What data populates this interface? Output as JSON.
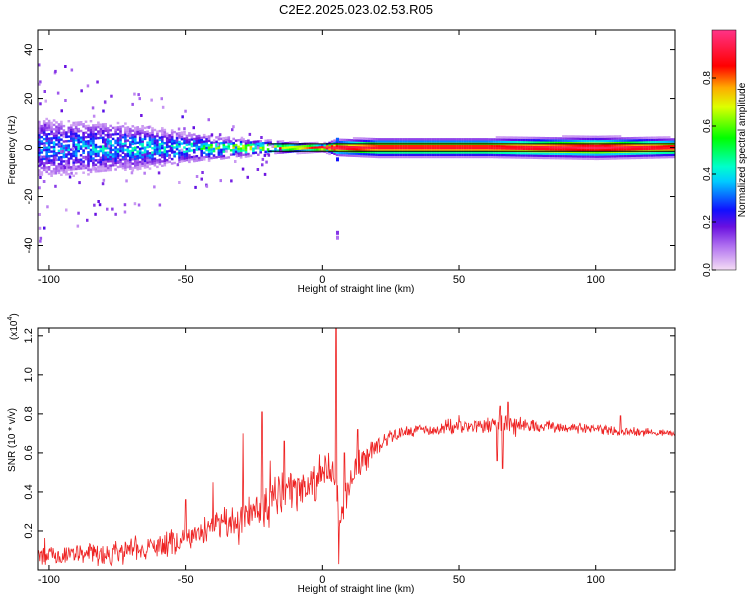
{
  "title": "C2E2.2025.023.02.53.R05",
  "colors": {
    "snr_line": "#ee2222",
    "frame": "#000000",
    "background": "#ffffff"
  },
  "chart_data": [
    {
      "type": "heatmap",
      "name": "spectrogram",
      "xlabel": "Height of straight line (km)",
      "ylabel": "Frequency (Hz)",
      "xlim": [
        -104,
        129
      ],
      "ylim": [
        -50,
        48
      ],
      "xticks": [
        -100,
        -50,
        0,
        50,
        100
      ],
      "yticks": [
        -40,
        -20,
        0,
        20,
        40
      ],
      "grid": false,
      "colorbar": {
        "label": "Normalized spectral amplitude",
        "range": [
          0,
          1
        ],
        "ticks": [
          "0.0",
          "0.2",
          "0.4",
          "0.6",
          "0.8"
        ],
        "colormap": [
          "#f5ddf5",
          "#8a2be2",
          "#0000ff",
          "#00ffff",
          "#00ff00",
          "#ffff00",
          "#ff8800",
          "#ff0000",
          "#ff33aa"
        ]
      },
      "horizontal_lines": [
        1.5,
        -1.5
      ],
      "band": [
        {
          "x": -104,
          "half_width": 12,
          "peak": 0.3
        },
        {
          "x": -75,
          "half_width": 10,
          "peak": 0.35
        },
        {
          "x": -50,
          "half_width": 6,
          "peak": 0.4
        },
        {
          "x": -25,
          "half_width": 3,
          "peak": 0.6
        },
        {
          "x": -10,
          "half_width": 2,
          "peak": 0.7
        },
        {
          "x": 0,
          "half_width": 1.5,
          "peak": 0.95
        },
        {
          "x": 5,
          "half_width": 3,
          "peak": 0.95
        },
        {
          "x": 20,
          "half_width": 3.5,
          "peak": 0.9
        },
        {
          "x": 60,
          "half_width": 3.5,
          "peak": 0.9
        },
        {
          "x": 100,
          "half_width": 4,
          "peak": 0.95
        },
        {
          "x": 129,
          "half_width": 3.5,
          "peak": 0.9
        }
      ]
    },
    {
      "type": "line",
      "name": "snr",
      "xlabel": "Height of straight line (km)",
      "ylabel": "SNR (10 * v/v)",
      "scale_label": "(x10",
      "scale_exponent": "4",
      "scale_close": ")",
      "xlim": [
        -104,
        129
      ],
      "ylim": [
        0,
        1.24
      ],
      "xticks": [
        -100,
        -50,
        0,
        50,
        100
      ],
      "yticks": [
        "0.2",
        "0.4",
        "0.6",
        "0.8",
        "1.0",
        "1.2"
      ],
      "grid": false,
      "series": [
        {
          "baseline": [
            [
              -104,
              0.07
            ],
            [
              -80,
              0.08
            ],
            [
              -60,
              0.12
            ],
            [
              -50,
              0.17
            ],
            [
              -40,
              0.21
            ],
            [
              -30,
              0.26
            ],
            [
              -20,
              0.33
            ],
            [
              -10,
              0.4
            ],
            [
              0,
              0.48
            ],
            [
              4,
              0.55
            ],
            [
              6,
              0.3
            ],
            [
              8,
              0.3
            ],
            [
              10,
              0.45
            ],
            [
              15,
              0.57
            ],
            [
              20,
              0.64
            ],
            [
              25,
              0.69
            ],
            [
              30,
              0.71
            ],
            [
              40,
              0.72
            ],
            [
              50,
              0.73
            ],
            [
              60,
              0.74
            ],
            [
              70,
              0.74
            ],
            [
              80,
              0.74
            ],
            [
              90,
              0.73
            ],
            [
              100,
              0.72
            ],
            [
              110,
              0.71
            ],
            [
              129,
              0.7
            ]
          ],
          "noise": [
            [
              -104,
              0.06
            ],
            [
              -60,
              0.07
            ],
            [
              -40,
              0.08
            ],
            [
              -30,
              0.12
            ],
            [
              -20,
              0.14
            ],
            [
              -10,
              0.12
            ],
            [
              0,
              0.12
            ],
            [
              10,
              0.1
            ],
            [
              20,
              0.06
            ],
            [
              30,
              0.03
            ],
            [
              60,
              0.04
            ],
            [
              70,
              0.06
            ],
            [
              80,
              0.03
            ],
            [
              129,
              0.02
            ]
          ],
          "spikes": [
            [
              -29,
              0.7
            ],
            [
              -22,
              0.81
            ],
            [
              -14,
              0.66
            ],
            [
              5,
              1.24
            ],
            [
              6,
              0.03
            ],
            [
              -40,
              0.45
            ],
            [
              -50,
              0.36
            ],
            [
              8,
              0.6
            ],
            [
              13,
              0.72
            ],
            [
              65,
              0.84
            ],
            [
              68,
              0.86
            ],
            [
              64,
              0.56
            ],
            [
              66,
              0.52
            ],
            [
              109,
              0.79
            ]
          ]
        }
      ]
    }
  ]
}
